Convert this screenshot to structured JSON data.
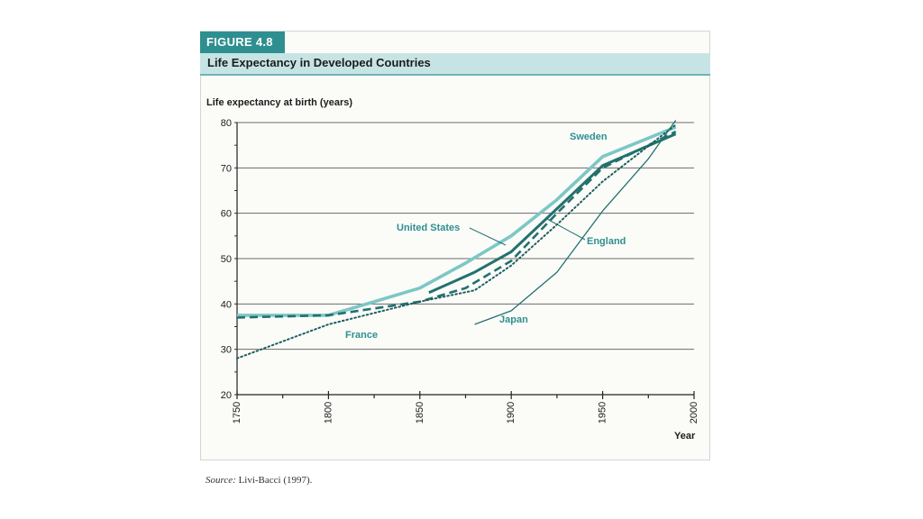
{
  "figure": {
    "label": "FIGURE 4.8",
    "title": "Life Expectancy in Developed Countries",
    "source_label": "Source:",
    "source_text": "Livi-Bacci (1997)."
  },
  "colors": {
    "accent": "#2f8f90",
    "band": "#c7e4e5",
    "series_dark": "#22716f",
    "series_light": "#7cc7c6",
    "series_dotted": "#1f5f60"
  },
  "chart_data": {
    "type": "line",
    "title": "Life Expectancy in Developed Countries",
    "ylabel": "Life expectancy at birth (years)",
    "xlabel": "Year",
    "xlim": [
      1750,
      2000
    ],
    "ylim": [
      20,
      80
    ],
    "x_ticks": [
      1750,
      1800,
      1850,
      1900,
      1950,
      2000
    ],
    "y_ticks": [
      20,
      30,
      40,
      50,
      60,
      70,
      80
    ],
    "grid": true,
    "series": [
      {
        "name": "Sweden",
        "style": "solid-light",
        "x": [
          1750,
          1800,
          1850,
          1875,
          1900,
          1925,
          1950,
          1990
        ],
        "y": [
          37.5,
          37.5,
          43.5,
          49,
          55,
          63,
          72.5,
          79
        ]
      },
      {
        "name": "United States",
        "style": "solid-dark",
        "x": [
          1855,
          1880,
          1900,
          1925,
          1950,
          1990
        ],
        "y": [
          42.5,
          47,
          51.5,
          61,
          70.5,
          77.5
        ]
      },
      {
        "name": "England",
        "style": "dashed",
        "x": [
          1750,
          1800,
          1850,
          1875,
          1900,
          1925,
          1950,
          1990
        ],
        "y": [
          37,
          37.5,
          40.5,
          43.5,
          49.5,
          60,
          70,
          78
        ]
      },
      {
        "name": "France",
        "style": "dotted",
        "x": [
          1750,
          1800,
          1850,
          1880,
          1900,
          1925,
          1950,
          1990
        ],
        "y": [
          28,
          35.5,
          40.5,
          43,
          48.5,
          57.5,
          67,
          79.5
        ]
      },
      {
        "name": "Japan",
        "style": "solid-thin",
        "x": [
          1880,
          1900,
          1925,
          1950,
          1975,
          1990
        ],
        "y": [
          35.5,
          38.5,
          47,
          60.5,
          72,
          80.5
        ]
      }
    ],
    "annotations": [
      {
        "text": "Sweden",
        "series": "Sweden"
      },
      {
        "text": "United States",
        "series": "United States"
      },
      {
        "text": "England",
        "series": "England"
      },
      {
        "text": "France",
        "series": "France"
      },
      {
        "text": "Japan",
        "series": "Japan"
      }
    ]
  }
}
